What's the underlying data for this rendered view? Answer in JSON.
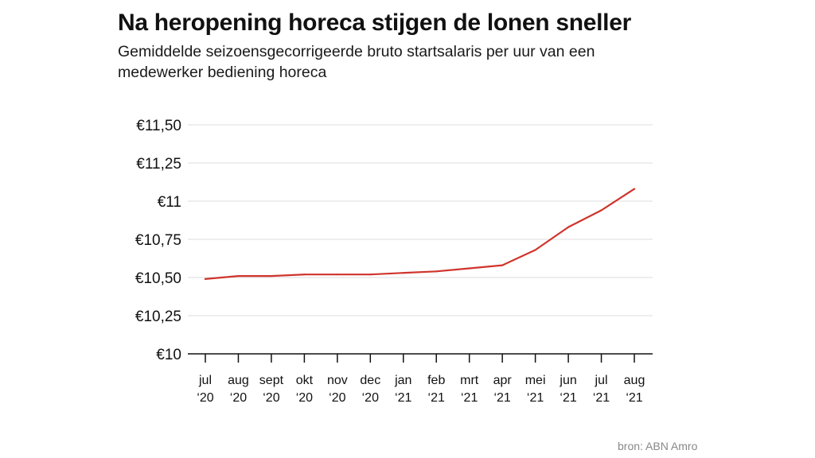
{
  "title": "Na heropening horeca stijgen de lonen sneller",
  "subtitle": "Gemiddelde seizoensgecorrigeerde bruto startsalaris per uur van een medewerker bediening horeca",
  "source": "bron: ABN Amro",
  "chart_data": {
    "type": "line",
    "categories": [
      [
        "jul",
        "‘20"
      ],
      [
        "aug",
        "‘20"
      ],
      [
        "sept",
        "‘20"
      ],
      [
        "okt",
        "‘20"
      ],
      [
        "nov",
        "‘20"
      ],
      [
        "dec",
        "‘20"
      ],
      [
        "jan",
        "‘21"
      ],
      [
        "feb",
        "‘21"
      ],
      [
        "mrt",
        "‘21"
      ],
      [
        "apr",
        "‘21"
      ],
      [
        "mei",
        "‘21"
      ],
      [
        "jun",
        "‘21"
      ],
      [
        "jul",
        "‘21"
      ],
      [
        "aug",
        "‘21"
      ]
    ],
    "values": [
      10.49,
      10.51,
      10.51,
      10.52,
      10.52,
      10.52,
      10.53,
      10.54,
      10.56,
      10.58,
      10.68,
      10.83,
      10.94,
      11.08
    ],
    "ylim": [
      10,
      11.5
    ],
    "yticks": [
      {
        "value": 10,
        "label": "€10"
      },
      {
        "value": 10.25,
        "label": "€10,25"
      },
      {
        "value": 10.5,
        "label": "€10,50"
      },
      {
        "value": 10.75,
        "label": "€10,75"
      },
      {
        "value": 11,
        "label": "€11"
      },
      {
        "value": 11.25,
        "label": "€11,25"
      },
      {
        "value": 11.5,
        "label": "€11,50"
      }
    ],
    "grid": true,
    "line_color": "#d0342c",
    "grid_color": "#dddddd",
    "axis_color": "#111111"
  }
}
